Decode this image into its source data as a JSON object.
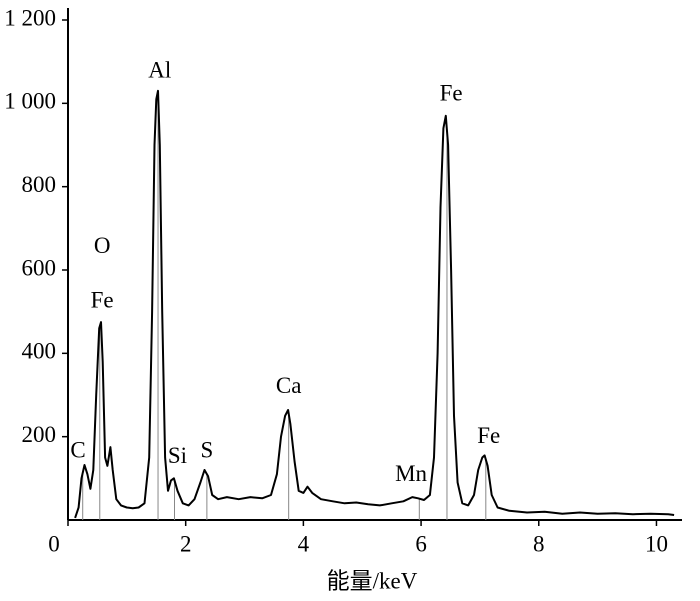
{
  "chart_data": {
    "type": "line",
    "x_label": "能量/keV",
    "x": [
      0.12,
      0.18,
      0.23,
      0.28,
      0.33,
      0.38,
      0.43,
      0.48,
      0.53,
      0.56,
      0.59,
      0.63,
      0.67,
      0.72,
      0.76,
      0.82,
      0.9,
      1.0,
      1.1,
      1.2,
      1.3,
      1.38,
      1.43,
      1.47,
      1.5,
      1.53,
      1.56,
      1.6,
      1.65,
      1.7,
      1.75,
      1.8,
      1.86,
      1.95,
      2.05,
      2.15,
      2.25,
      2.32,
      2.38,
      2.45,
      2.55,
      2.7,
      2.9,
      3.1,
      3.3,
      3.45,
      3.55,
      3.62,
      3.69,
      3.74,
      3.78,
      3.85,
      3.92,
      4.0,
      4.07,
      4.15,
      4.3,
      4.5,
      4.7,
      4.9,
      5.1,
      5.3,
      5.5,
      5.7,
      5.85,
      5.95,
      6.05,
      6.15,
      6.22,
      6.28,
      6.33,
      6.38,
      6.42,
      6.46,
      6.51,
      6.56,
      6.62,
      6.7,
      6.8,
      6.9,
      6.97,
      7.04,
      7.08,
      7.13,
      7.2,
      7.3,
      7.5,
      7.8,
      8.1,
      8.4,
      8.7,
      9.0,
      9.3,
      9.6,
      9.9,
      10.2,
      10.3
    ],
    "values": [
      5,
      30,
      100,
      132,
      110,
      75,
      120,
      300,
      460,
      475,
      380,
      150,
      130,
      175,
      120,
      50,
      35,
      30,
      28,
      30,
      40,
      150,
      500,
      900,
      1010,
      1030,
      900,
      500,
      150,
      70,
      95,
      100,
      70,
      40,
      35,
      50,
      90,
      120,
      105,
      60,
      50,
      55,
      50,
      55,
      52,
      60,
      110,
      200,
      250,
      264,
      230,
      140,
      70,
      65,
      80,
      65,
      50,
      45,
      40,
      42,
      38,
      35,
      40,
      45,
      55,
      52,
      48,
      60,
      150,
      400,
      750,
      940,
      970,
      900,
      600,
      250,
      90,
      40,
      35,
      60,
      120,
      150,
      155,
      130,
      60,
      30,
      22,
      18,
      20,
      15,
      18,
      15,
      16,
      14,
      15,
      14,
      12
    ],
    "color": "#000000",
    "peak_lines": [
      0.25,
      0.54,
      1.53,
      1.81,
      2.36,
      3.75,
      5.97,
      6.44,
      7.1
    ],
    "annotations": [
      {
        "text": "C",
        "x": 0.17,
        "y": 163
      },
      {
        "text": "O",
        "x": 0.58,
        "y": 653
      },
      {
        "text": "Fe",
        "x": 0.58,
        "y": 523
      },
      {
        "text": "Al",
        "x": 1.56,
        "y": 1075
      },
      {
        "text": "Si",
        "x": 1.86,
        "y": 149
      },
      {
        "text": "S",
        "x": 2.36,
        "y": 163
      },
      {
        "text": "Ca",
        "x": 3.75,
        "y": 317
      },
      {
        "text": "Mn",
        "x": 5.83,
        "y": 106
      },
      {
        "text": "Fe",
        "x": 6.51,
        "y": 1020
      },
      {
        "text": "Fe",
        "x": 7.15,
        "y": 197
      }
    ],
    "xlim": [
      0,
      10.4
    ],
    "xticks": [
      0,
      2,
      4,
      6,
      8,
      10
    ],
    "ylim": [
      0,
      1200
    ],
    "yticks": [
      200,
      400,
      600,
      800,
      {
        "value": 1000,
        "label": "1 000"
      },
      {
        "value": 1200,
        "label": "1 200"
      }
    ]
  }
}
